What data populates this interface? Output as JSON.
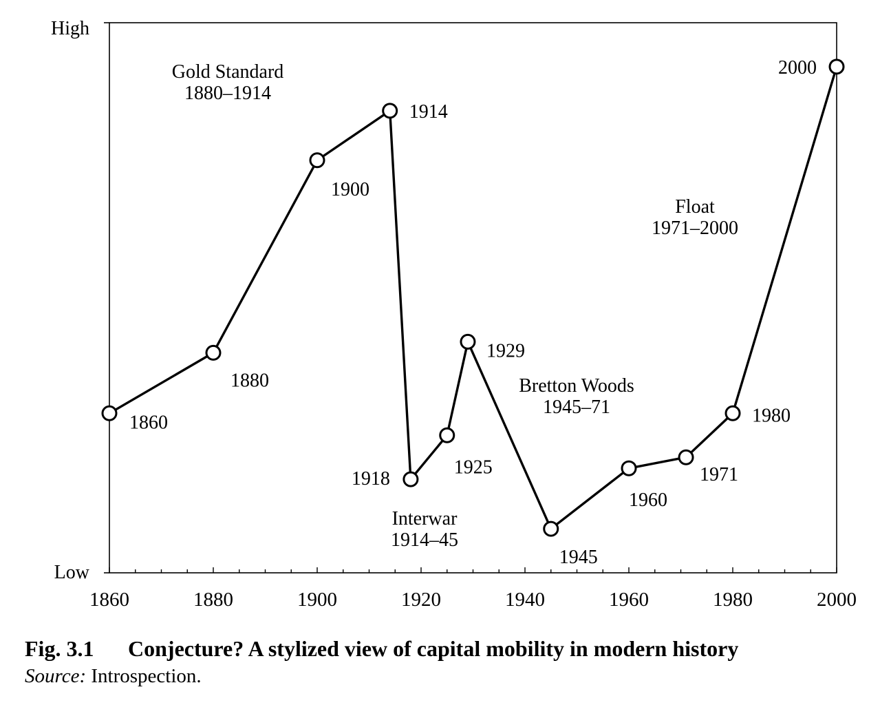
{
  "chart_data": {
    "type": "line",
    "title": "",
    "xlabel": "",
    "ylabel": "",
    "xlim": [
      1860,
      2000
    ],
    "x_ticks": [
      1860,
      1880,
      1900,
      1920,
      1940,
      1960,
      1980,
      2000
    ],
    "x_minor_step": 5,
    "y_axis_labels": {
      "top": "High",
      "bottom": "Low"
    },
    "ylim": [
      0,
      100
    ],
    "grid": false,
    "series": [
      {
        "points": [
          {
            "x": 1860,
            "y": 29,
            "label": "1860"
          },
          {
            "x": 1880,
            "y": 40,
            "label": "1880"
          },
          {
            "x": 1900,
            "y": 75,
            "label": "1900"
          },
          {
            "x": 1914,
            "y": 84,
            "label": "1914"
          },
          {
            "x": 1918,
            "y": 17,
            "label": "1918"
          },
          {
            "x": 1925,
            "y": 25,
            "label": "1925"
          },
          {
            "x": 1929,
            "y": 42,
            "label": "1929"
          },
          {
            "x": 1945,
            "y": 8,
            "label": "1945"
          },
          {
            "x": 1960,
            "y": 19,
            "label": "1960"
          },
          {
            "x": 1971,
            "y": 21,
            "label": "1971"
          },
          {
            "x": 1980,
            "y": 29,
            "label": "1980"
          },
          {
            "x": 2000,
            "y": 92,
            "label": "2000"
          }
        ]
      }
    ],
    "annotations": [
      {
        "id": "gold",
        "lines": [
          "Gold Standard",
          "1880–1914"
        ]
      },
      {
        "id": "interwar",
        "lines": [
          "Interwar",
          "1914–45"
        ]
      },
      {
        "id": "bretton",
        "lines": [
          "Bretton Woods",
          "1945–71"
        ]
      },
      {
        "id": "float",
        "lines": [
          "Float",
          "1971–2000"
        ]
      }
    ]
  },
  "caption": {
    "figure_number": "Fig. 3.1",
    "title": "Conjecture? A stylized view of capital mobility in modern history",
    "source_label": "Source:",
    "source_text": " Introspection."
  }
}
